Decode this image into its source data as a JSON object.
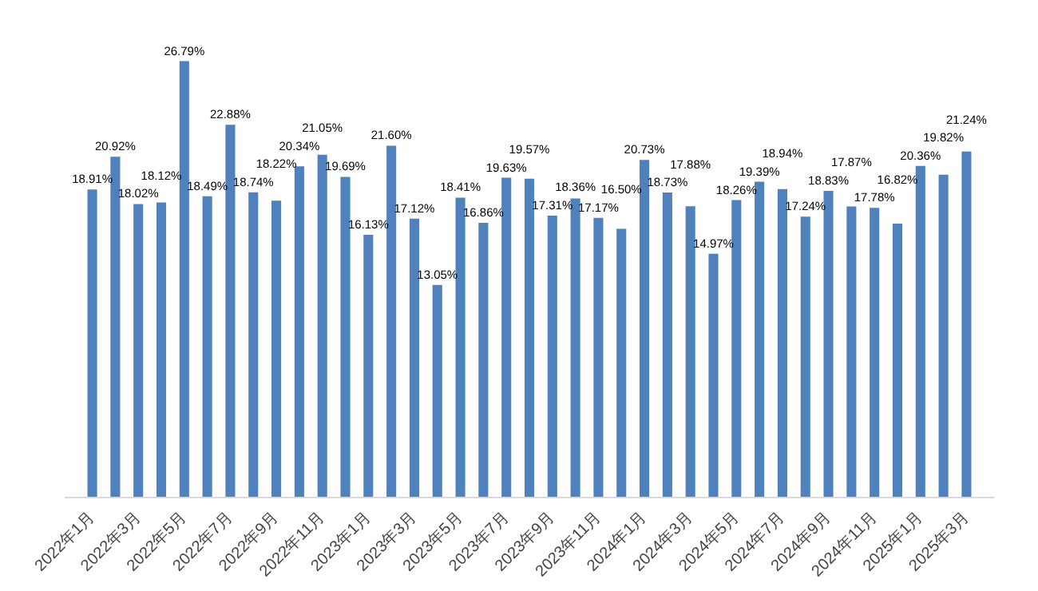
{
  "chart_data": {
    "type": "bar",
    "categories": [
      "2022年1月",
      null,
      "2022年3月",
      null,
      "2022年5月",
      null,
      "2022年7月",
      null,
      "2022年9月",
      null,
      "2022年11月",
      null,
      "2023年1月",
      null,
      "2023年3月",
      null,
      "2023年5月",
      null,
      "2023年7月",
      null,
      "2023年9月",
      null,
      "2023年11月",
      null,
      "2024年1月",
      null,
      "2024年3月",
      null,
      "2024年5月",
      null,
      "2024年7月",
      null,
      "2024年9月",
      null,
      "2024年11月",
      null,
      "2025年1月",
      null,
      "2025年3月"
    ],
    "values": [
      18.91,
      20.92,
      18.02,
      18.12,
      26.79,
      18.49,
      22.88,
      18.74,
      18.22,
      20.34,
      21.05,
      19.69,
      16.13,
      21.6,
      17.12,
      13.05,
      18.41,
      16.86,
      19.63,
      19.57,
      17.31,
      18.36,
      17.17,
      16.5,
      20.73,
      18.73,
      17.88,
      14.97,
      18.26,
      19.39,
      18.94,
      17.24,
      18.83,
      17.87,
      17.78,
      16.82,
      20.36,
      19.82,
      21.24
    ],
    "value_labels": [
      "18.91%",
      "20.92%",
      "18.02%",
      "18.12%",
      "26.79%",
      "18.49%",
      "22.88%",
      "18.74%",
      "18.22%",
      "20.34%",
      "21.05%",
      "19.69%",
      "16.13%",
      "21.60%",
      "17.12%",
      "13.05%",
      "18.41%",
      "16.86%",
      "19.63%",
      "19.57%",
      "17.31%",
      "18.36%",
      "17.17%",
      "16.50%",
      "20.73%",
      "18.73%",
      "17.88%",
      "14.97%",
      "18.26%",
      "19.39%",
      "18.94%",
      "17.24%",
      "18.83%",
      "17.87%",
      "17.78%",
      "16.82%",
      "20.36%",
      "19.82%",
      "21.24%"
    ],
    "color": "#4f81bd",
    "grid": false
  }
}
